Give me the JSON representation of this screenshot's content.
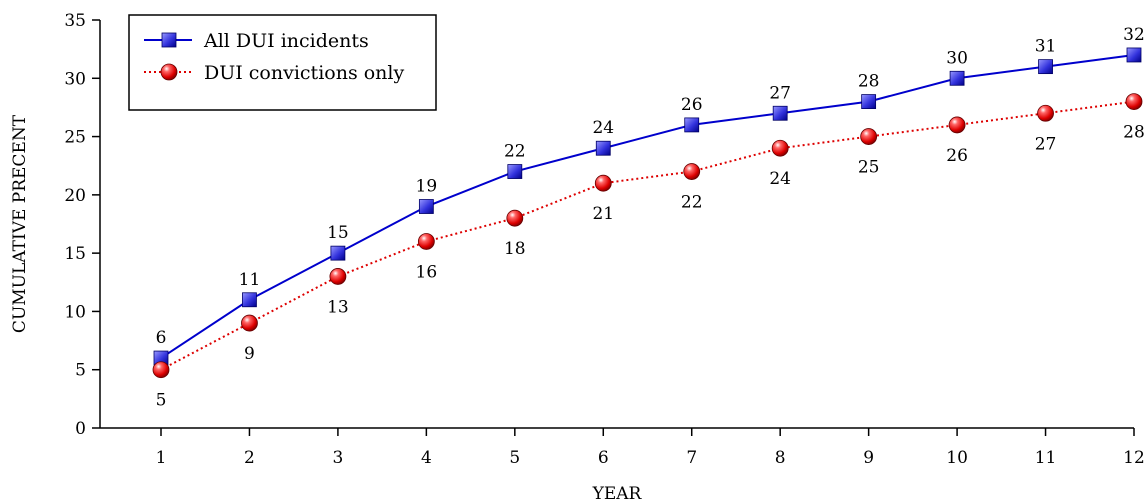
{
  "chart_data": {
    "type": "line",
    "xlabel": "YEAR",
    "ylabel": "CUMULATIVE PRECENT",
    "x": [
      1,
      2,
      3,
      4,
      5,
      6,
      7,
      8,
      9,
      10,
      11,
      12
    ],
    "xlim": [
      1,
      12
    ],
    "ylim": [
      0,
      35
    ],
    "yticks": [
      0,
      5,
      10,
      15,
      20,
      25,
      30,
      35
    ],
    "grid": false,
    "legend_position": "top-left",
    "series": [
      {
        "name": "All DUI incidents",
        "values": [
          6,
          11,
          15,
          19,
          22,
          24,
          26,
          27,
          28,
          30,
          31,
          32
        ],
        "color": "#0000cc",
        "marker": "square",
        "line_style": "solid",
        "label_position": "above"
      },
      {
        "name": "DUI convictions only",
        "values": [
          5,
          9,
          13,
          16,
          18,
          21,
          22,
          24,
          25,
          26,
          27,
          28
        ],
        "color": "#dd0000",
        "marker": "circle",
        "line_style": "dotted",
        "label_position": "below"
      }
    ]
  }
}
